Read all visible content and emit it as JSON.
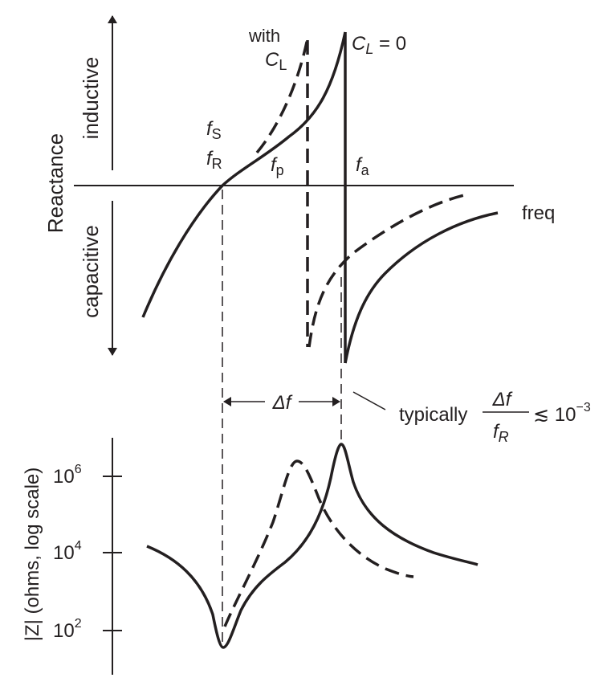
{
  "top": {
    "ylabel": "Reactance",
    "up_label": "inductive",
    "down_label": "capacitive",
    "xlabel": "freq",
    "fs": "f",
    "fs_sub": "S",
    "fr": "f",
    "fr_sub": "R",
    "fp": "f",
    "fp_sub": "p",
    "fa": "f",
    "fa_sub": "a",
    "with_label": "with",
    "cl_label": "C",
    "cl_sub": "L",
    "cl0_label": "C",
    "cl0_sub": "L",
    "cl0_eq": " = 0"
  },
  "delta": {
    "label": "Δf",
    "note": "typically",
    "frac_num": "Δf",
    "frac_den": "f",
    "frac_den_sub": "R",
    "relation": "≲ 10",
    "exponent": "−3"
  },
  "bottom": {
    "ylabel": "|Z| (ohms, log scale)",
    "ticks": [
      {
        "base": "10",
        "exp": "6"
      },
      {
        "base": "10",
        "exp": "4"
      },
      {
        "base": "10",
        "exp": "2"
      }
    ]
  },
  "colors": {
    "ink": "#231f20"
  }
}
